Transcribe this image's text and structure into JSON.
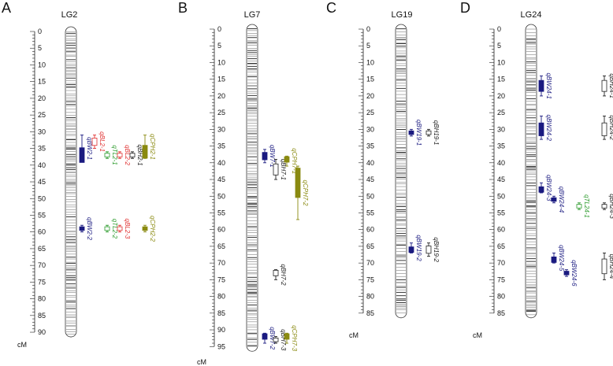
{
  "colors": {
    "BW": "#1a1a80",
    "TL": "#2a9a2a",
    "BL": "#e03030",
    "BH": "#222222",
    "CPH": "#8a8a10"
  },
  "panels": [
    {
      "letter": "A",
      "lg": "LG2",
      "unit": "cM",
      "max": 90,
      "ticks": [
        "0",
        "5",
        "10",
        "15",
        "20",
        "25",
        "30",
        "35",
        "40",
        "45",
        "50",
        "55",
        "60",
        "65",
        "70",
        "75",
        "80",
        "85",
        "90"
      ],
      "qtls": [
        {
          "name": "qBW2-1",
          "trait": "BW",
          "col": 0,
          "start": 31,
          "end": 39,
          "peak": 37
        },
        {
          "name": "qBL2-1",
          "trait": "BL",
          "col": 1,
          "start": 31,
          "end": 35,
          "peak": 33
        },
        {
          "name": "qTL2-1",
          "trait": "TL",
          "col": 2,
          "start": 36,
          "end": 38,
          "peak": 37
        },
        {
          "name": "qBL2-2",
          "trait": "BL",
          "col": 3,
          "start": 36,
          "end": 38,
          "peak": 37
        },
        {
          "name": "qBH2-1",
          "trait": "BH",
          "col": 4,
          "start": 36,
          "end": 38,
          "peak": 37
        },
        {
          "name": "qCPH2-1",
          "trait": "CPH",
          "col": 5,
          "start": 31,
          "end": 38,
          "peak": 36
        },
        {
          "name": "qBW2-2",
          "trait": "BW",
          "col": 0,
          "start": 58,
          "end": 60,
          "peak": 59
        },
        {
          "name": "qTL2-2",
          "trait": "TL",
          "col": 2,
          "start": 58,
          "end": 60,
          "peak": 59
        },
        {
          "name": "qBL2-3",
          "trait": "BL",
          "col": 3,
          "start": 58,
          "end": 60,
          "peak": 59
        },
        {
          "name": "qCPH2-2",
          "trait": "CPH",
          "col": 5,
          "start": 58,
          "end": 60,
          "peak": 59
        }
      ]
    },
    {
      "letter": "B",
      "lg": "LG7",
      "unit": "cM",
      "max": 95,
      "ticks": [
        "0",
        "5",
        "10",
        "15",
        "20",
        "25",
        "30",
        "35",
        "40",
        "45",
        "50",
        "55",
        "60",
        "65",
        "70",
        "75",
        "80",
        "85",
        "90",
        "95"
      ],
      "qtls": [
        {
          "name": "qBW7-1",
          "trait": "BW",
          "col": 0,
          "start": 36,
          "end": 40,
          "peak": 38
        },
        {
          "name": "qBH7-1",
          "trait": "BH",
          "col": 1,
          "start": 39,
          "end": 45,
          "peak": 42
        },
        {
          "name": "qCPH7-1",
          "trait": "CPH",
          "col": 2,
          "start": 38,
          "end": 41,
          "peak": 39
        },
        {
          "name": "qCPH7-2",
          "trait": "CPH",
          "col": 3,
          "start": 41,
          "end": 57,
          "peak": 46
        },
        {
          "name": "qBH7-2",
          "trait": "BH",
          "col": 1,
          "start": 72,
          "end": 75,
          "peak": 73
        },
        {
          "name": "qBW7-2",
          "trait": "BW",
          "col": 0,
          "start": 91,
          "end": 94,
          "peak": 92
        },
        {
          "name": "qBH7-3",
          "trait": "BH",
          "col": 1,
          "start": 92,
          "end": 94,
          "peak": 93
        },
        {
          "name": "qCPH7-3",
          "trait": "CPH",
          "col": 2,
          "start": 91,
          "end": 94,
          "peak": 92
        }
      ]
    },
    {
      "letter": "C",
      "lg": "LG19",
      "unit": "cM",
      "max": 85,
      "ticks": [
        "0",
        "5",
        "10",
        "15",
        "20",
        "25",
        "30",
        "35",
        "40",
        "45",
        "50",
        "55",
        "60",
        "65",
        "70",
        "75",
        "80",
        "85"
      ],
      "qtls": [
        {
          "name": "qBW19-1",
          "trait": "BW",
          "col": 0,
          "start": 30,
          "end": 32,
          "peak": 31
        },
        {
          "name": "qBH19-1",
          "trait": "BH",
          "col": 1,
          "start": 30,
          "end": 32,
          "peak": 31
        },
        {
          "name": "qBW19-2",
          "trait": "BW",
          "col": 0,
          "start": 64,
          "end": 67,
          "peak": 66
        },
        {
          "name": "qBH19-2",
          "trait": "BH",
          "col": 1,
          "start": 64,
          "end": 68,
          "peak": 66
        }
      ]
    },
    {
      "letter": "D",
      "lg": "LG24",
      "unit": "cM",
      "max": 85,
      "ticks": [
        "0",
        "5",
        "10",
        "15",
        "20",
        "25",
        "30",
        "35",
        "40",
        "45",
        "50",
        "55",
        "60",
        "65",
        "70",
        "75",
        "80",
        "85"
      ],
      "qtls": [
        {
          "name": "qBW24-1",
          "trait": "BW",
          "col": 0,
          "start": 14,
          "end": 20,
          "peak": 17
        },
        {
          "name": "qBH24-1",
          "trait": "BH",
          "col": 5,
          "start": 14,
          "end": 20,
          "peak": 17
        },
        {
          "name": "qBW24-2",
          "trait": "BW",
          "col": 0,
          "start": 26,
          "end": 33,
          "peak": 30
        },
        {
          "name": "qBH24-2",
          "trait": "BH",
          "col": 5,
          "start": 26,
          "end": 33,
          "peak": 30
        },
        {
          "name": "qBW24-3",
          "trait": "BW",
          "col": 0,
          "start": 46,
          "end": 49,
          "peak": 48
        },
        {
          "name": "qBW24-4",
          "trait": "BW",
          "col": 1,
          "start": 50,
          "end": 52,
          "peak": 51
        },
        {
          "name": "qTL24-1",
          "trait": "TL",
          "col": 3,
          "start": 52,
          "end": 54,
          "peak": 53
        },
        {
          "name": "qBH24-3",
          "trait": "BH",
          "col": 5,
          "start": 52,
          "end": 54,
          "peak": 53
        },
        {
          "name": "qBW24-5",
          "trait": "BW",
          "col": 1,
          "start": 67,
          "end": 70,
          "peak": 69
        },
        {
          "name": "qBW24-6",
          "trait": "BW",
          "col": 2,
          "start": 72,
          "end": 74,
          "peak": 73
        },
        {
          "name": "qBH24-4",
          "trait": "BH",
          "col": 5,
          "start": 67,
          "end": 75,
          "peak": 71
        }
      ]
    }
  ]
}
